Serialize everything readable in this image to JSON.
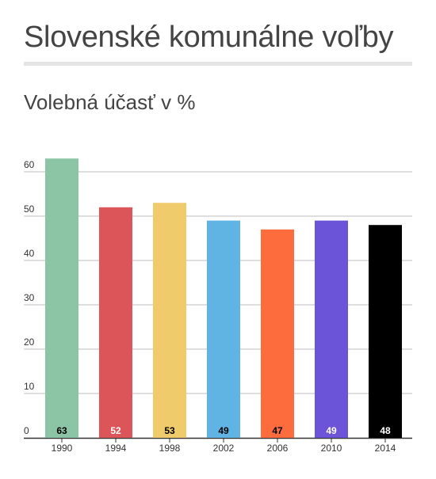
{
  "header": {
    "title": "Slovenské komunálne voľby",
    "subtitle": "Volebná účasť v %"
  },
  "chart_data": {
    "type": "bar",
    "title": "Volebná účasť v %",
    "xlabel": "",
    "ylabel": "",
    "ylim": [
      0,
      60
    ],
    "yticks": [
      0,
      10,
      20,
      30,
      40,
      50,
      60
    ],
    "grid": true,
    "legend": "none",
    "categories": [
      "1990",
      "1994",
      "1998",
      "2002",
      "2006",
      "2010",
      "2014"
    ],
    "values": [
      63,
      52,
      53,
      49,
      47,
      49,
      48
    ],
    "data_labels": [
      "63",
      "52",
      "53",
      "49",
      "47",
      "49",
      "48"
    ],
    "colors": [
      "#8cc4a6",
      "#dc5558",
      "#efcb6b",
      "#5fb4e4",
      "#fd6c3d",
      "#6c54d8",
      "#000000"
    ],
    "label_colors": [
      "#000000",
      "#ffffff",
      "#000000",
      "#000000",
      "#000000",
      "#ffffff",
      "#ffffff"
    ]
  }
}
